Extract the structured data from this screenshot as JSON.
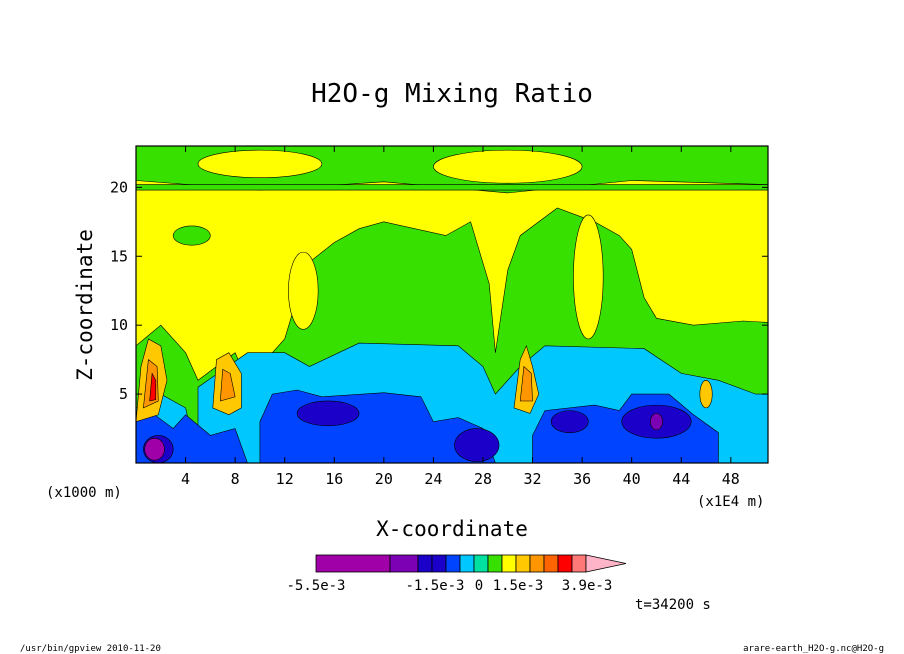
{
  "chart_data": {
    "type": "heatmap",
    "title": "H2O-g Mixing Ratio",
    "xlabel": "X-coordinate",
    "ylabel": "Z-coordinate",
    "x_unit_left": "(x1000 m)",
    "x_unit_right": "(x1E4 m)",
    "x_ticks": [
      "4",
      "8",
      "12",
      "16",
      "20",
      "24",
      "28",
      "32",
      "36",
      "40",
      "44",
      "48"
    ],
    "x_tick_values": [
      4,
      8,
      12,
      16,
      20,
      24,
      28,
      32,
      36,
      40,
      44,
      48
    ],
    "xlim": [
      0,
      51
    ],
    "y_ticks": [
      "5",
      "10",
      "15",
      "20"
    ],
    "y_tick_values": [
      5,
      10,
      15,
      20
    ],
    "ylim": [
      0,
      23
    ],
    "colorbar": {
      "labels": [
        "-5.5e-3",
        "-1.5e-3",
        "0",
        "1.5e-3",
        "3.9e-3"
      ],
      "colors": [
        "#a000a8",
        "#a000a8",
        "#a000a8",
        "#7c00b4",
        "#1a00c8",
        "#0044ff",
        "#00c8ff",
        "#00e0a0",
        "#38e000",
        "#ffff00",
        "#ffc800",
        "#ff9600",
        "#ff6400",
        "#ff0000",
        "#ff7878",
        "#ffb4c8"
      ]
    },
    "time_label": "t=34200 s",
    "grid": false
  },
  "footer": {
    "left": "/usr/bin/gpview  2010-11-20",
    "right": "arare-earth_H2O-g.nc@H2O-g"
  }
}
